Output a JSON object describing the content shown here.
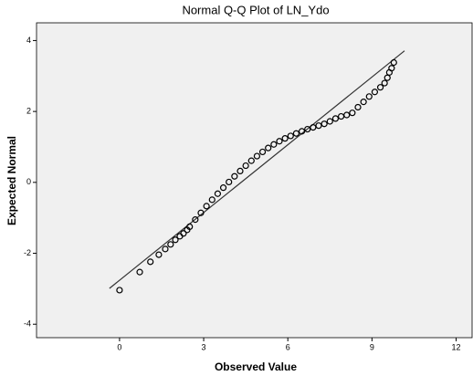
{
  "chart_data": {
    "type": "scatter",
    "title": "Normal Q-Q Plot of LN_Ydo",
    "x_label": "Observed Value",
    "y_label": "Expected Normal",
    "xlim": [
      -2.96,
      12.57
    ],
    "ylim": [
      -4.38,
      4.5
    ],
    "xticks": [
      0,
      3,
      6,
      9,
      12
    ],
    "yticks": [
      -4,
      -2,
      0,
      2,
      4
    ],
    "grid": false,
    "color": "#000000",
    "background": "#f0f0f0",
    "x": [
      0,
      0.72,
      1.1,
      1.4,
      1.63,
      1.82,
      1.99,
      2.15,
      2.28,
      2.41,
      2.5,
      2.7,
      2.9,
      3.1,
      3.3,
      3.5,
      3.7,
      3.9,
      4.1,
      4.3,
      4.5,
      4.7,
      4.9,
      5.1,
      5.3,
      5.5,
      5.7,
      5.9,
      6.1,
      6.3,
      6.5,
      6.7,
      6.9,
      7.1,
      7.3,
      7.5,
      7.7,
      7.9,
      8.1,
      8.3,
      8.5,
      8.7,
      8.9,
      9.1,
      9.3,
      9.45,
      9.55,
      9.62,
      9.7,
      9.78
    ],
    "values": [
      -3.04,
      -2.53,
      -2.24,
      -2.04,
      -1.88,
      -1.75,
      -1.62,
      -1.52,
      -1.44,
      -1.34,
      -1.25,
      -1.05,
      -0.86,
      -0.67,
      -0.49,
      -0.32,
      -0.15,
      0.01,
      0.17,
      0.32,
      0.47,
      0.61,
      0.74,
      0.86,
      0.97,
      1.07,
      1.16,
      1.24,
      1.31,
      1.38,
      1.44,
      1.5,
      1.55,
      1.6,
      1.65,
      1.72,
      1.8,
      1.86,
      1.9,
      1.96,
      2.12,
      2.27,
      2.42,
      2.55,
      2.68,
      2.8,
      2.95,
      3.1,
      3.22,
      3.38
    ],
    "reference_line": {
      "x": [
        -0.36,
        10.16
      ],
      "y": [
        -2.99,
        3.71
      ],
      "color": "#333333"
    }
  }
}
